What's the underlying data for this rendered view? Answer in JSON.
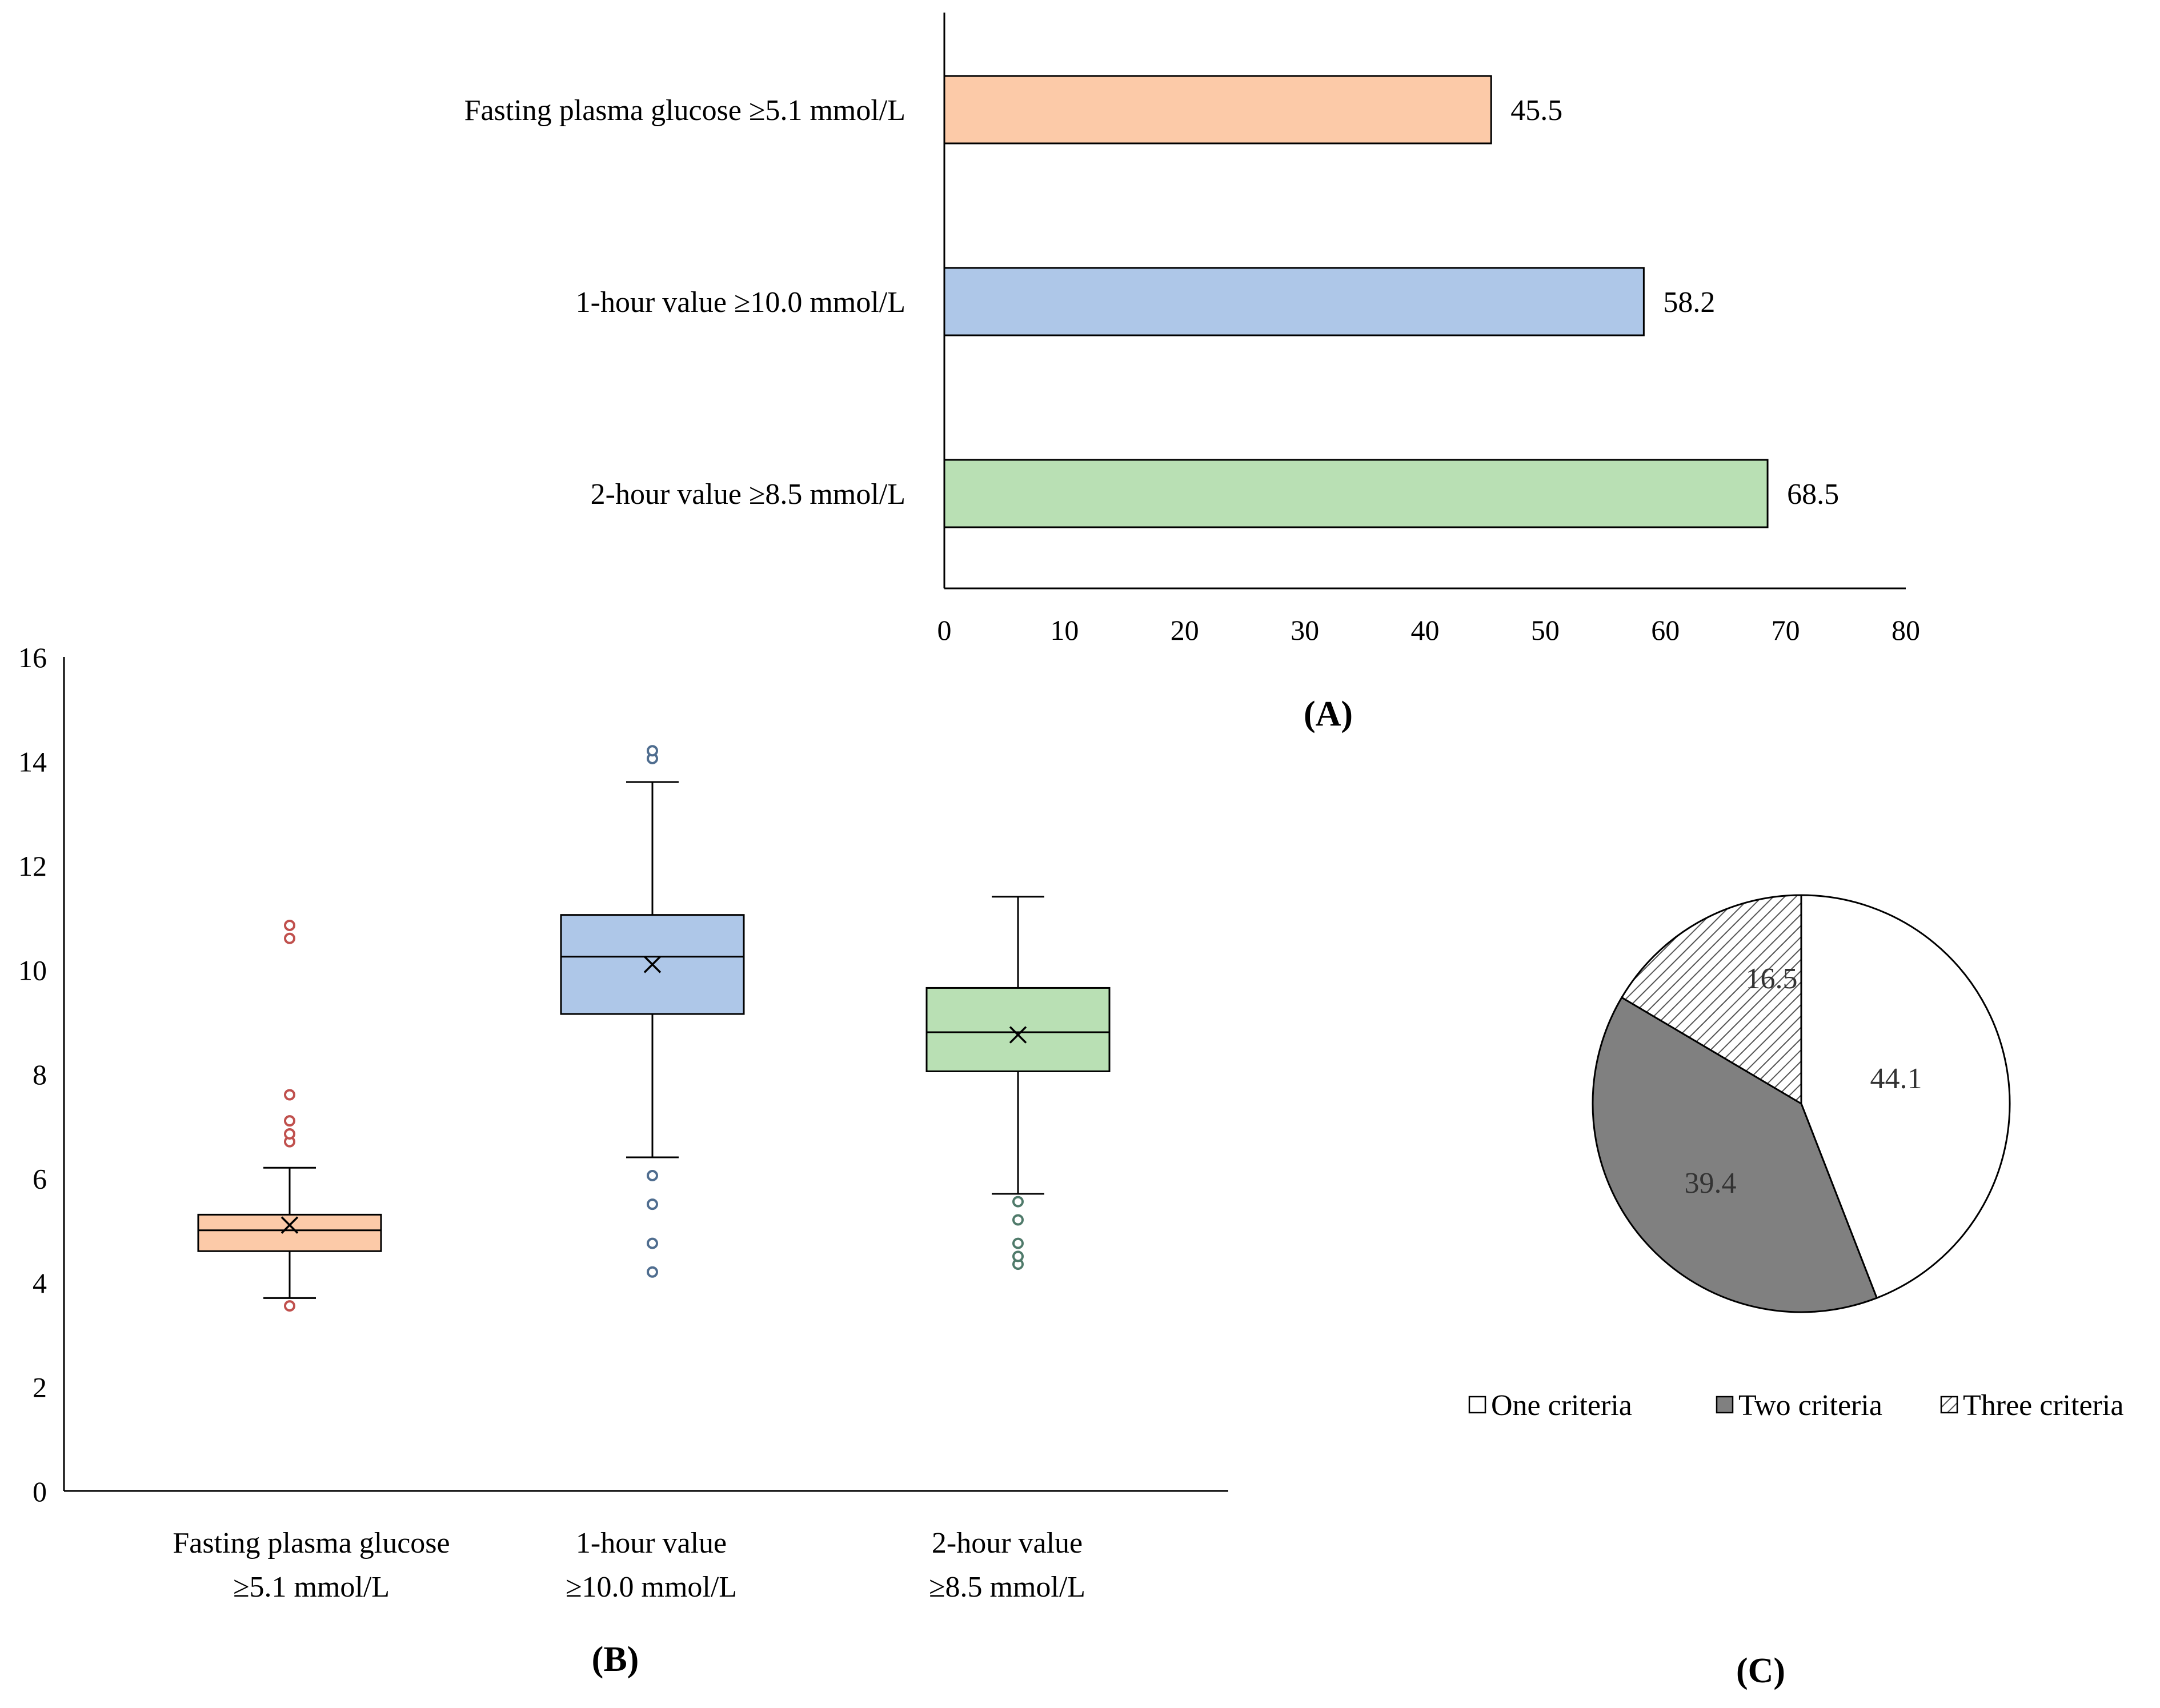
{
  "chart_data": [
    {
      "type": "bar",
      "orientation": "horizontal",
      "panel_label": "(A)",
      "categories": [
        "Fasting  plasma  glucose  ≥5.1 mmol/L",
        "1-hour  value  ≥10.0 mmol/L",
        "2-hour  value  ≥8.5 mmol/L"
      ],
      "values": [
        45.5,
        58.2,
        68.5
      ],
      "value_labels": [
        "45.5",
        "58.2",
        "68.5"
      ],
      "colors": [
        "#fccaa8",
        "#aec7e8",
        "#b9e0b4"
      ],
      "xlim": [
        0,
        80
      ],
      "xticks": [
        0,
        10,
        20,
        30,
        40,
        50,
        60,
        70,
        80
      ],
      "xtick_labels": [
        "0",
        "10",
        "20",
        "30",
        "40",
        "50",
        "60",
        "70",
        "80"
      ]
    },
    {
      "type": "box",
      "panel_label": "(B)",
      "ylim": [
        0,
        16
      ],
      "yticks": [
        0,
        2,
        4,
        6,
        8,
        10,
        12,
        14,
        16
      ],
      "ytick_labels": [
        "0",
        "2",
        "4",
        "6",
        "8",
        "10",
        "12",
        "14",
        "16"
      ],
      "boxes": [
        {
          "label_lines": [
            "Fasting  plasma  glucose",
            "≥5.1 mmol/L"
          ],
          "whisker_low": 3.7,
          "q1": 4.6,
          "median": 5.0,
          "q3": 5.3,
          "whisker_high": 6.2,
          "mean": 5.1,
          "outliers": [
            3.55,
            6.7,
            6.85,
            7.1,
            7.6,
            10.6,
            10.85
          ],
          "fill": "#fccaa8",
          "outlier_color": "#c0504d"
        },
        {
          "label_lines": [
            "1-hour  value",
            "≥10.0 mmol/L"
          ],
          "whisker_low": 6.4,
          "q1": 9.15,
          "median": 10.25,
          "q3": 11.05,
          "whisker_high": 13.6,
          "mean": 10.1,
          "outliers": [
            4.2,
            4.75,
            5.5,
            6.05,
            14.05,
            14.2
          ],
          "fill": "#aec7e8",
          "outlier_color": "#4f6d8f"
        },
        {
          "label_lines": [
            "2-hour  value",
            "≥8.5 mmol/L"
          ],
          "whisker_low": 5.7,
          "q1": 8.05,
          "median": 8.8,
          "q3": 9.65,
          "whisker_high": 11.4,
          "mean": 8.75,
          "outliers": [
            4.35,
            4.5,
            4.75,
            5.2,
            5.55
          ],
          "fill": "#b9e0b4",
          "outlier_color": "#4f7a6a"
        }
      ]
    },
    {
      "type": "pie",
      "panel_label": "(C)",
      "slices": [
        {
          "label": "One criteria",
          "value": 44.1,
          "value_label": "44.1",
          "fill": "#ffffff"
        },
        {
          "label": "Two criteria",
          "value": 39.4,
          "value_label": "39.4",
          "fill": "#808080"
        },
        {
          "label": "Three criteria",
          "value": 16.5,
          "value_label": "16.5",
          "fill": "hatch"
        }
      ],
      "start": "12 o'clock, clockwise",
      "legend_position": "bottom"
    }
  ]
}
